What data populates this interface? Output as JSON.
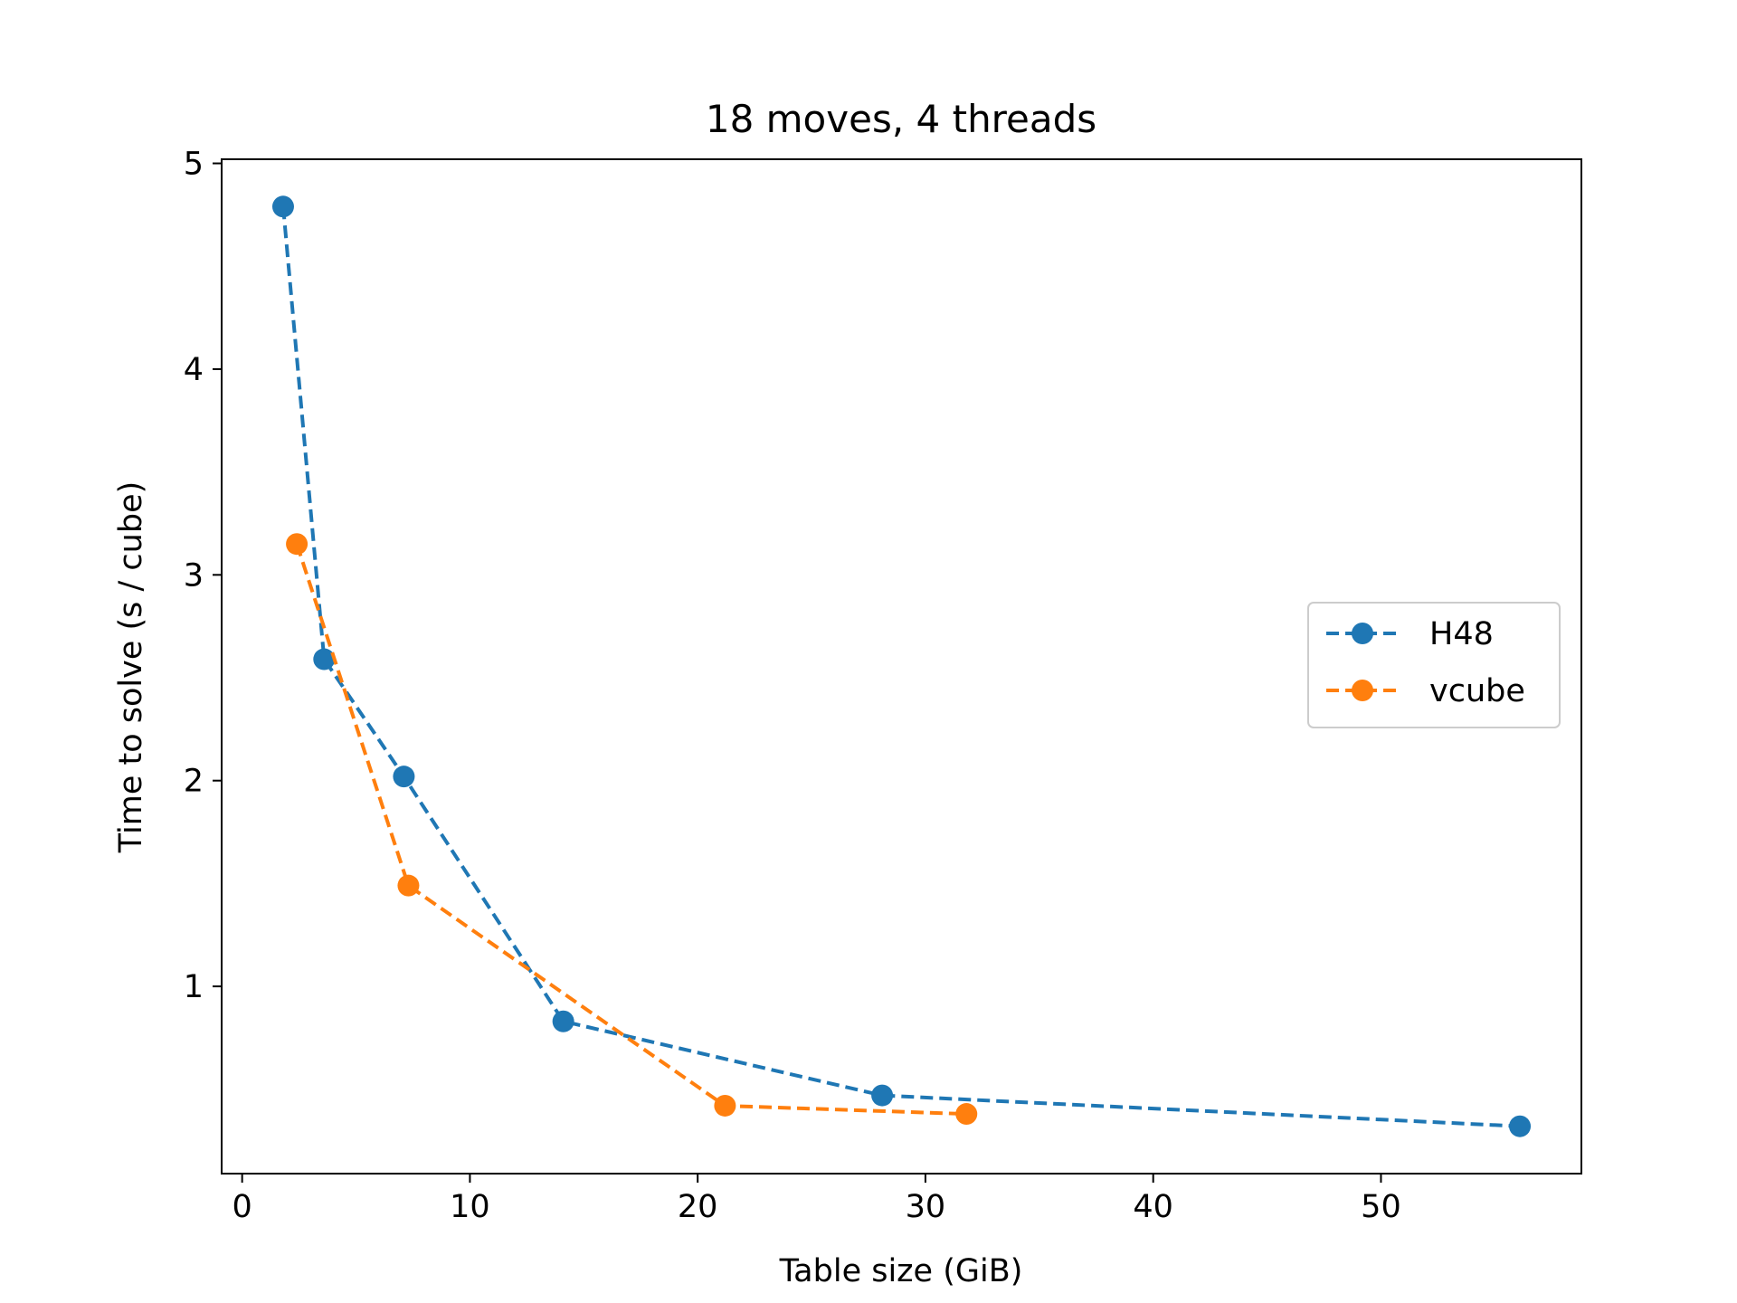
{
  "chart_data": {
    "type": "line",
    "title": "18 moves, 4 threads",
    "xlabel": "Table size (GiB)",
    "ylabel": "Time to solve (s / cube)",
    "xlim": [
      -0.9,
      58.8
    ],
    "ylim": [
      0.09,
      5.02
    ],
    "xticks": [
      0,
      10,
      20,
      30,
      40,
      50
    ],
    "yticks": [
      1,
      2,
      3,
      4,
      5
    ],
    "grid": false,
    "legend_position": "center-right",
    "series": [
      {
        "name": "H48",
        "color": "#1f77b4",
        "line_style": "dashed",
        "marker": "circle",
        "x": [
          1.8,
          3.6,
          7.1,
          14.1,
          28.1,
          56.1
        ],
        "y": [
          4.79,
          2.59,
          2.02,
          0.83,
          0.47,
          0.32
        ]
      },
      {
        "name": "vcube",
        "color": "#ff7f0e",
        "line_style": "dashed",
        "marker": "circle",
        "x": [
          2.4,
          7.3,
          21.2,
          31.8
        ],
        "y": [
          3.15,
          1.49,
          0.42,
          0.38
        ]
      }
    ]
  }
}
